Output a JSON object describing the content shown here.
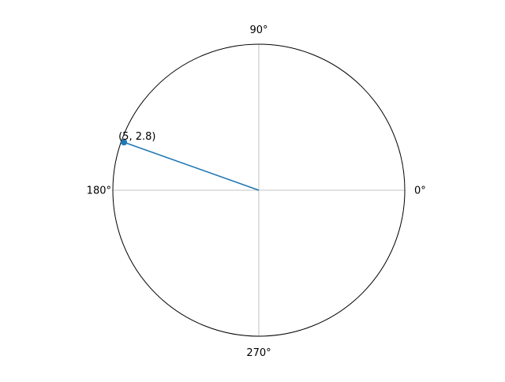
{
  "chart_data": {
    "type": "line",
    "coordinate_system": "polar",
    "angular_ticks": [
      "0°",
      "90°",
      "180°",
      "270°"
    ],
    "radial_ticks": [],
    "grid": true,
    "series": [
      {
        "theta": [
          0,
          2.8
        ],
        "r": [
          0,
          5
        ],
        "color": "#1f77b4",
        "marker_at_end": true
      }
    ],
    "annotations": [
      {
        "text": "(5, 2.8)",
        "theta": 2.8,
        "r": 5
      }
    ]
  }
}
